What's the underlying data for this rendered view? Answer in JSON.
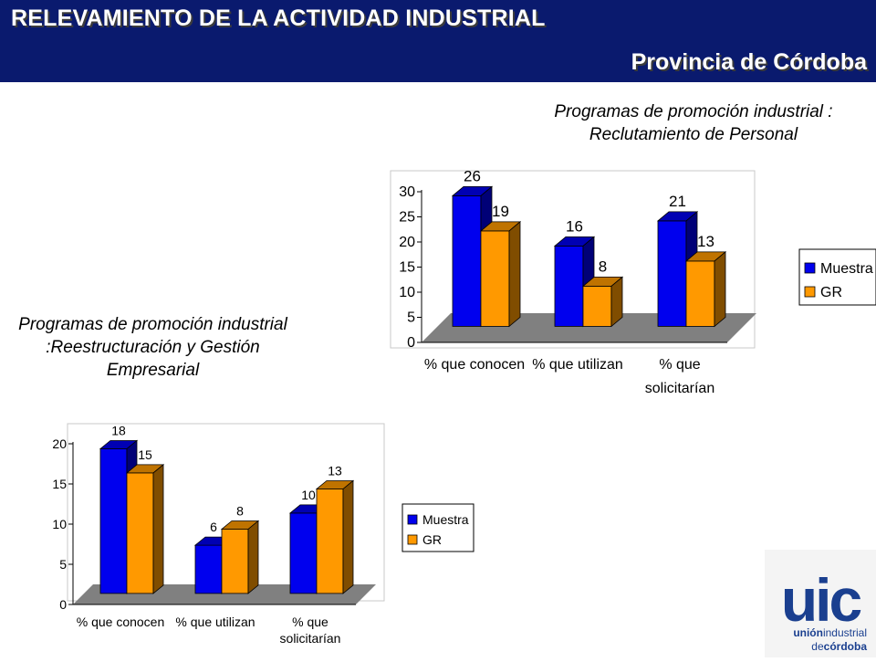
{
  "header": {
    "title": "RELEVAMIENTO DE LA ACTIVIDAD INDUSTRIAL",
    "subtitle": "Provincia de Córdoba"
  },
  "captions": {
    "chart1": [
      "Programas de promoción industrial :",
      "Reclutamiento  de Personal"
    ],
    "chart2": [
      "Programas de promoción industrial",
      ":Reestructuración y Gestión",
      "Empresarial"
    ]
  },
  "logo": {
    "mark": "uic",
    "line1_bold": "unión",
    "line1_rest": "industrial",
    "line2_pre": "de",
    "line2_bold": "córdoba"
  },
  "colors": {
    "header_bg": "#0a1a6e",
    "muestra": "#0000ee",
    "gr": "#ff9900",
    "floor": "#808080",
    "logo_blue": "#1a3f8f"
  },
  "chart_data": [
    {
      "type": "bar",
      "title": "Programas de promoción industrial : Reclutamiento  de Personal",
      "categories": [
        [
          "% que conocen"
        ],
        [
          "% que utilizan"
        ],
        [
          "% que",
          "solicitarían"
        ]
      ],
      "series": [
        {
          "name": "Muestra",
          "values": [
            26,
            16,
            21
          ]
        },
        {
          "name": "GR",
          "values": [
            19,
            8,
            13
          ]
        }
      ],
      "ylim": [
        0,
        30
      ],
      "yticks": [
        0,
        5,
        10,
        15,
        20,
        25,
        30
      ],
      "legend": "right",
      "three_d": true
    },
    {
      "type": "bar",
      "title": "Programas de promoción industrial :Reestructuración y Gestión Empresarial",
      "categories": [
        [
          "% que conocen"
        ],
        [
          "% que utilizan"
        ],
        [
          "% que",
          "solicitarían"
        ]
      ],
      "series": [
        {
          "name": "Muestra",
          "values": [
            18,
            6,
            10
          ]
        },
        {
          "name": "GR",
          "values": [
            15,
            8,
            13
          ]
        }
      ],
      "ylim": [
        0,
        20
      ],
      "yticks": [
        0,
        5,
        10,
        15,
        20
      ],
      "legend": "right",
      "three_d": true
    }
  ]
}
